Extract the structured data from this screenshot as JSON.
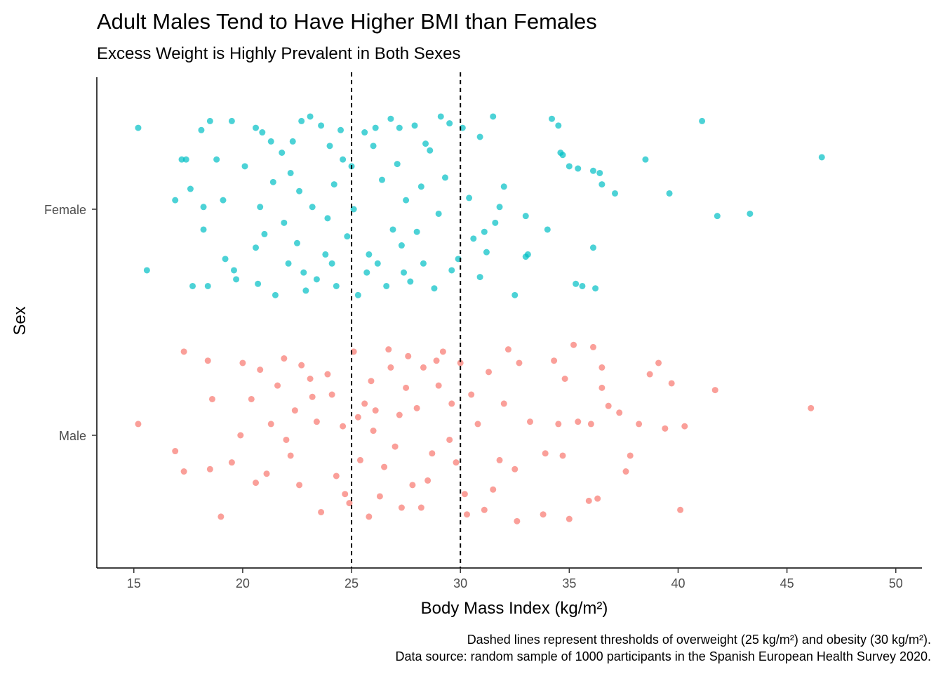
{
  "chart_data": {
    "type": "scatter",
    "title": "Adult Males Tend to Have Higher BMI than Females",
    "subtitle": "Excess Weight is Highly Prevalent in Both Sexes",
    "xlabel": "Body Mass Index (kg/m²)",
    "ylabel": "Sex",
    "xlim": [
      13.3,
      51.2
    ],
    "xticks": [
      15,
      20,
      25,
      30,
      35,
      40,
      45,
      50
    ],
    "categories": [
      "Female",
      "Male"
    ],
    "reference_lines": [
      25,
      30
    ],
    "caption": [
      "Dashed lines represent thresholds of overweight (25 kg/m²) and obesity (30 kg/m²).",
      "Data source: random sample of 1000 participants in the Spanish European Health Survey 2020."
    ],
    "grid": false,
    "legend": "none",
    "series": [
      {
        "category": "Female",
        "color": "#00BFC4",
        "points": [
          [
            15.2,
            0.36
          ],
          [
            15.6,
            -0.27
          ],
          [
            16.9,
            0.04
          ],
          [
            17.2,
            0.22
          ],
          [
            17.4,
            0.22
          ],
          [
            17.6,
            0.09
          ],
          [
            17.7,
            -0.34
          ],
          [
            18.1,
            0.35
          ],
          [
            18.2,
            0.01
          ],
          [
            18.5,
            0.39
          ],
          [
            18.8,
            0.22
          ],
          [
            19.1,
            0.04
          ],
          [
            19.5,
            0.39
          ],
          [
            20.1,
            0.19
          ],
          [
            20.6,
            0.36
          ],
          [
            20.9,
            0.34
          ],
          [
            21.3,
            0.3
          ],
          [
            21.8,
            0.25
          ],
          [
            22.2,
            0.16
          ],
          [
            22.7,
            0.39
          ],
          [
            23.1,
            0.41
          ],
          [
            23.6,
            0.37
          ],
          [
            24.0,
            0.28
          ],
          [
            24.5,
            0.35
          ],
          [
            25.0,
            0.19
          ],
          [
            25.6,
            0.34
          ],
          [
            26.1,
            0.36
          ],
          [
            26.8,
            0.4
          ],
          [
            27.2,
            0.36
          ],
          [
            27.9,
            0.37
          ],
          [
            28.4,
            0.29
          ],
          [
            29.1,
            0.41
          ],
          [
            29.5,
            0.38
          ],
          [
            30.1,
            0.36
          ],
          [
            30.9,
            0.32
          ],
          [
            31.5,
            0.41
          ],
          [
            32.0,
            0.1
          ],
          [
            33.0,
            -0.03
          ],
          [
            34.2,
            0.4
          ],
          [
            34.5,
            0.37
          ],
          [
            34.6,
            0.25
          ],
          [
            34.7,
            0.24
          ],
          [
            35.0,
            0.19
          ],
          [
            35.4,
            0.18
          ],
          [
            36.1,
            0.17
          ],
          [
            36.5,
            0.11
          ],
          [
            37.1,
            0.07
          ],
          [
            36.4,
            0.16
          ],
          [
            38.5,
            0.22
          ],
          [
            39.6,
            0.07
          ],
          [
            41.1,
            0.39
          ],
          [
            41.8,
            -0.03
          ],
          [
            43.3,
            -0.02
          ],
          [
            46.6,
            0.23
          ],
          [
            18.2,
            -0.09
          ],
          [
            18.4,
            -0.34
          ],
          [
            19.6,
            -0.27
          ],
          [
            19.7,
            -0.31
          ],
          [
            19.2,
            -0.22
          ],
          [
            20.6,
            -0.17
          ],
          [
            20.7,
            -0.33
          ],
          [
            21.0,
            -0.11
          ],
          [
            21.5,
            -0.38
          ],
          [
            22.1,
            -0.24
          ],
          [
            22.5,
            -0.15
          ],
          [
            22.9,
            -0.36
          ],
          [
            23.4,
            -0.31
          ],
          [
            23.8,
            -0.2
          ],
          [
            24.3,
            -0.34
          ],
          [
            24.8,
            -0.12
          ],
          [
            25.3,
            -0.38
          ],
          [
            25.7,
            -0.28
          ],
          [
            26.2,
            -0.24
          ],
          [
            26.6,
            -0.34
          ],
          [
            27.3,
            -0.16
          ],
          [
            27.7,
            -0.32
          ],
          [
            28.3,
            -0.24
          ],
          [
            28.8,
            -0.35
          ],
          [
            29.6,
            -0.27
          ],
          [
            29.9,
            -0.22
          ],
          [
            30.9,
            -0.3
          ],
          [
            31.2,
            -0.19
          ],
          [
            31.6,
            -0.06
          ],
          [
            32.5,
            -0.38
          ],
          [
            33.0,
            -0.21
          ],
          [
            33.1,
            -0.2
          ],
          [
            34.0,
            -0.09
          ],
          [
            35.3,
            -0.33
          ],
          [
            35.6,
            -0.34
          ],
          [
            36.2,
            -0.35
          ],
          [
            36.1,
            -0.17
          ],
          [
            28.2,
            0.1
          ],
          [
            26.4,
            0.13
          ],
          [
            24.2,
            0.11
          ],
          [
            22.6,
            0.08
          ],
          [
            27.5,
            0.04
          ],
          [
            29.0,
            -0.02
          ],
          [
            23.9,
            -0.04
          ],
          [
            25.1,
            0.0
          ],
          [
            21.9,
            -0.06
          ],
          [
            26.9,
            -0.09
          ],
          [
            30.4,
            0.05
          ],
          [
            31.8,
            0.01
          ],
          [
            24.6,
            0.22
          ],
          [
            22.3,
            0.3
          ],
          [
            28.6,
            0.26
          ],
          [
            27.1,
            0.2
          ],
          [
            23.2,
            0.01
          ],
          [
            20.8,
            0.01
          ],
          [
            26.0,
            0.28
          ],
          [
            29.3,
            0.14
          ],
          [
            30.6,
            -0.13
          ],
          [
            31.1,
            -0.1
          ],
          [
            21.4,
            0.12
          ],
          [
            25.8,
            -0.2
          ],
          [
            24.1,
            -0.24
          ],
          [
            27.4,
            -0.28
          ],
          [
            22.8,
            -0.28
          ],
          [
            28.0,
            -0.1
          ]
        ]
      },
      {
        "category": "Male",
        "color": "#F8766D",
        "points": [
          [
            15.2,
            0.05
          ],
          [
            16.9,
            -0.07
          ],
          [
            17.3,
            0.37
          ],
          [
            17.3,
            -0.16
          ],
          [
            18.4,
            0.33
          ],
          [
            18.5,
            -0.15
          ],
          [
            18.6,
            0.16
          ],
          [
            19.0,
            -0.36
          ],
          [
            19.5,
            -0.12
          ],
          [
            20.4,
            0.16
          ],
          [
            20.6,
            -0.21
          ],
          [
            20.8,
            0.29
          ],
          [
            21.3,
            0.05
          ],
          [
            21.6,
            0.22
          ],
          [
            22.2,
            -0.09
          ],
          [
            22.7,
            0.31
          ],
          [
            23.2,
            0.17
          ],
          [
            23.6,
            -0.34
          ],
          [
            24.1,
            0.18
          ],
          [
            24.6,
            0.04
          ],
          [
            25.1,
            0.37
          ],
          [
            25.4,
            -0.11
          ],
          [
            25.9,
            0.24
          ],
          [
            26.3,
            -0.27
          ],
          [
            26.7,
            0.38
          ],
          [
            27.2,
            0.09
          ],
          [
            27.8,
            -0.22
          ],
          [
            28.3,
            0.3
          ],
          [
            28.7,
            -0.08
          ],
          [
            29.2,
            0.37
          ],
          [
            29.6,
            0.14
          ],
          [
            30.0,
            0.32
          ],
          [
            30.3,
            -0.35
          ],
          [
            30.8,
            0.05
          ],
          [
            31.3,
            0.28
          ],
          [
            31.8,
            -0.11
          ],
          [
            32.2,
            0.38
          ],
          [
            32.7,
            0.32
          ],
          [
            32.6,
            -0.38
          ],
          [
            33.2,
            0.06
          ],
          [
            33.8,
            -0.35
          ],
          [
            34.3,
            0.33
          ],
          [
            34.5,
            0.05
          ],
          [
            34.7,
            -0.09
          ],
          [
            35.0,
            -0.37
          ],
          [
            35.2,
            0.4
          ],
          [
            35.4,
            0.06
          ],
          [
            35.9,
            -0.29
          ],
          [
            36.1,
            0.39
          ],
          [
            36.3,
            -0.28
          ],
          [
            36.5,
            0.21
          ],
          [
            36.8,
            0.13
          ],
          [
            37.3,
            0.1
          ],
          [
            37.6,
            -0.16
          ],
          [
            38.2,
            0.05
          ],
          [
            38.7,
            0.27
          ],
          [
            39.1,
            0.32
          ],
          [
            39.4,
            0.03
          ],
          [
            39.7,
            0.23
          ],
          [
            40.1,
            -0.33
          ],
          [
            40.3,
            0.04
          ],
          [
            41.7,
            0.2
          ],
          [
            46.1,
            0.12
          ],
          [
            36.5,
            0.3
          ],
          [
            34.8,
            0.25
          ],
          [
            33.9,
            -0.08
          ],
          [
            32.5,
            -0.15
          ],
          [
            31.1,
            -0.33
          ],
          [
            37.8,
            -0.09
          ],
          [
            36.0,
            0.05
          ],
          [
            22.0,
            -0.02
          ],
          [
            23.4,
            0.06
          ],
          [
            24.3,
            -0.18
          ],
          [
            25.6,
            0.14
          ],
          [
            26.0,
            0.02
          ],
          [
            27.0,
            -0.05
          ],
          [
            27.5,
            0.21
          ],
          [
            28.0,
            0.12
          ],
          [
            28.5,
            -0.2
          ],
          [
            29.0,
            0.22
          ],
          [
            29.5,
            -0.02
          ],
          [
            30.5,
            0.18
          ],
          [
            31.5,
            -0.24
          ],
          [
            24.9,
            -0.3
          ],
          [
            26.5,
            -0.14
          ],
          [
            23.9,
            0.27
          ],
          [
            22.6,
            -0.22
          ],
          [
            21.1,
            -0.17
          ],
          [
            20.0,
            0.32
          ],
          [
            19.9,
            0.0
          ],
          [
            21.9,
            0.34
          ],
          [
            24.7,
            -0.26
          ],
          [
            26.8,
            0.3
          ],
          [
            28.9,
            0.33
          ],
          [
            29.8,
            -0.12
          ],
          [
            25.3,
            0.08
          ],
          [
            27.3,
            -0.32
          ],
          [
            23.1,
            0.25
          ],
          [
            25.8,
            -0.36
          ],
          [
            28.2,
            -0.32
          ],
          [
            22.4,
            0.11
          ],
          [
            26.1,
            0.11
          ],
          [
            30.2,
            -0.26
          ],
          [
            32.0,
            0.14
          ],
          [
            27.6,
            0.35
          ]
        ]
      }
    ]
  }
}
